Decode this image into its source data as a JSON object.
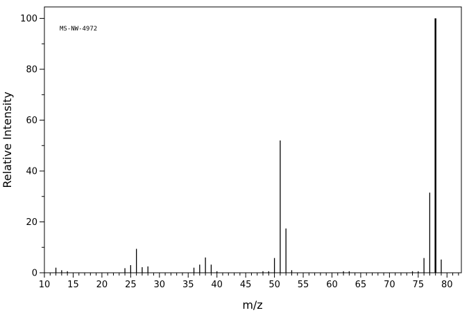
{
  "chart_data": {
    "type": "bar",
    "annotation": "MS-NW-4972",
    "xlabel": "m/z",
    "ylabel": "Relative Intensity",
    "xlim": [
      10,
      82.5
    ],
    "ylim": [
      0,
      104.5
    ],
    "x_ticks": [
      10,
      15,
      20,
      25,
      30,
      35,
      40,
      45,
      50,
      55,
      60,
      65,
      70,
      75,
      80
    ],
    "y_ticks": [
      0,
      20,
      40,
      60,
      80,
      100
    ],
    "grid": false,
    "peaks": [
      {
        "mz": 12,
        "intensity": 2.0
      },
      {
        "mz": 13,
        "intensity": 1.0
      },
      {
        "mz": 14,
        "intensity": 0.6
      },
      {
        "mz": 24,
        "intensity": 1.8
      },
      {
        "mz": 25,
        "intensity": 3.0
      },
      {
        "mz": 26,
        "intensity": 9.4
      },
      {
        "mz": 27,
        "intensity": 2.2
      },
      {
        "mz": 28,
        "intensity": 2.5
      },
      {
        "mz": 36,
        "intensity": 2.0
      },
      {
        "mz": 37,
        "intensity": 3.2
      },
      {
        "mz": 38,
        "intensity": 6.0
      },
      {
        "mz": 39,
        "intensity": 3.2
      },
      {
        "mz": 40,
        "intensity": 0.6
      },
      {
        "mz": 48,
        "intensity": 0.6
      },
      {
        "mz": 49,
        "intensity": 0.6
      },
      {
        "mz": 50,
        "intensity": 5.8
      },
      {
        "mz": 51,
        "intensity": 52.0
      },
      {
        "mz": 52,
        "intensity": 17.4
      },
      {
        "mz": 53,
        "intensity": 1.0
      },
      {
        "mz": 62,
        "intensity": 0.6
      },
      {
        "mz": 63,
        "intensity": 0.6
      },
      {
        "mz": 74,
        "intensity": 0.6
      },
      {
        "mz": 75,
        "intensity": 0.6
      },
      {
        "mz": 76,
        "intensity": 5.8
      },
      {
        "mz": 77,
        "intensity": 31.5
      },
      {
        "mz": 78,
        "intensity": 100.0
      },
      {
        "mz": 79,
        "intensity": 5.2
      }
    ]
  }
}
